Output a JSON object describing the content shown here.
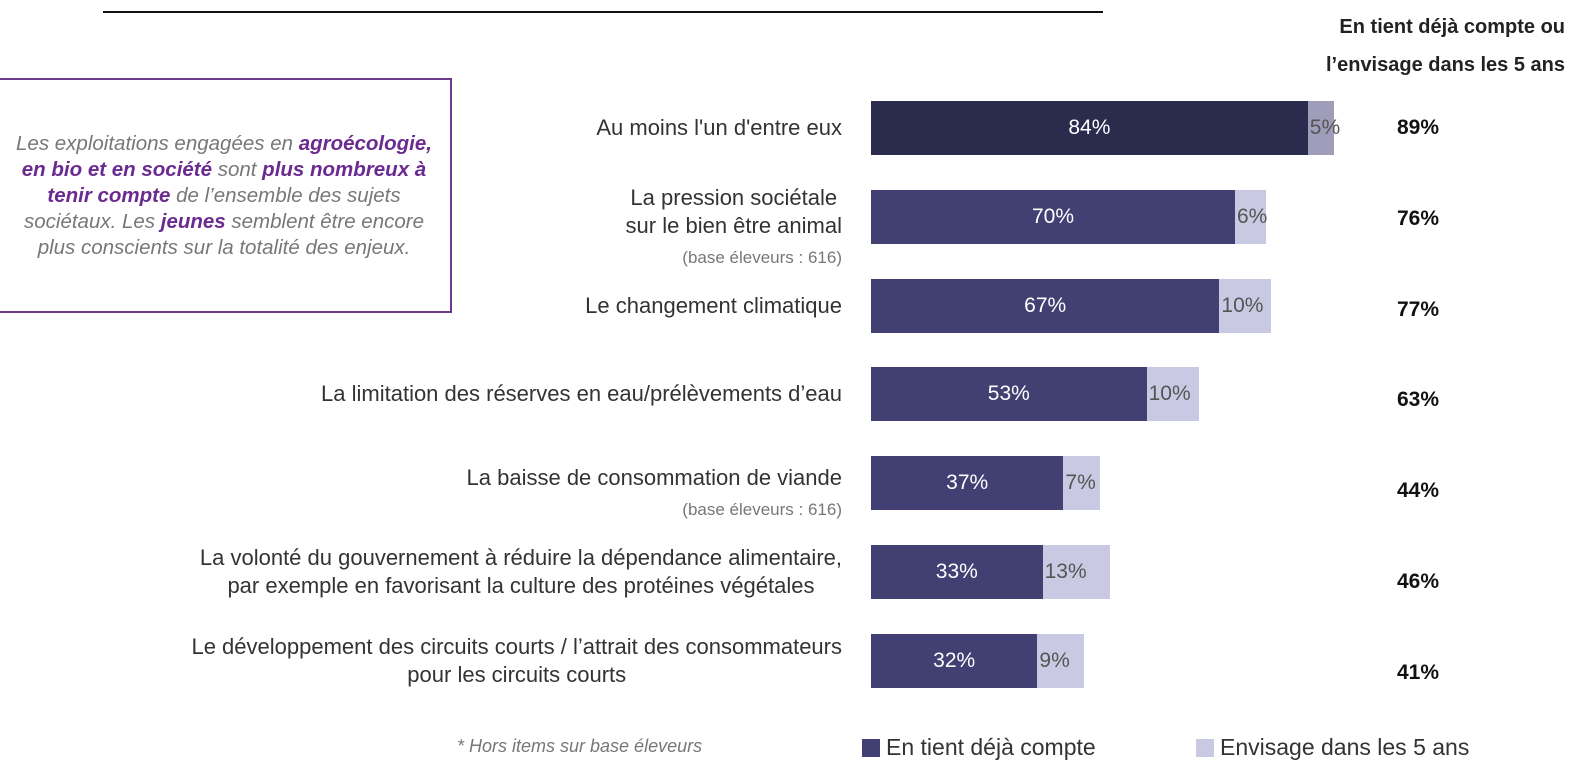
{
  "chart_data": {
    "type": "stacked_barh",
    "header": [
      "En tient déjà compte ou",
      "l’envisage dans les 5 ans"
    ],
    "categories": [
      [
        "Au moins l'un d'entre eux"
      ],
      [
        "La pression sociétale",
        "sur le bien être animal"
      ],
      [
        "Le changement climatique"
      ],
      [
        "La limitation des réserves en eau/prélèvements d’eau"
      ],
      [
        "La baisse de consommation de viande"
      ],
      [
        "La volonté du gouvernement à réduire la dépendance alimentaire,",
        "par exemple en favorisant la culture des protéines végétales"
      ],
      [
        "Le développement des circuits courts / l’attrait des consommateurs",
        "pour les circuits courts"
      ]
    ],
    "notes": [
      null,
      "(base éleveurs : 616)",
      null,
      null,
      "(base éleveurs : 616)",
      null,
      null
    ],
    "series": [
      {
        "name": "En tient déjà compte",
        "color": "#424073",
        "colors": [
          "#2b2b4d",
          "#424073",
          "#424073",
          "#424073",
          "#424073",
          "#424073",
          "#424073"
        ],
        "values": [
          84,
          70,
          67,
          53,
          37,
          33,
          32
        ],
        "value_labels": [
          "84%",
          "70%",
          "67%",
          "53%",
          "37%",
          "33%",
          "32%"
        ]
      },
      {
        "name": "Envisage dans les 5 ans",
        "color": "#cac9e3",
        "colors": [
          "#9f9dba",
          "#cac9e3",
          "#cac9e3",
          "#cac9e3",
          "#cac9e3",
          "#cac9e3",
          "#cac9e3"
        ],
        "values": [
          5,
          6,
          10,
          10,
          7,
          13,
          9
        ],
        "value_labels": [
          "5%",
          "6%",
          "10%",
          "10%",
          "7%",
          "13%",
          "9%"
        ]
      }
    ],
    "totals": [
      89,
      76,
      77,
      63,
      44,
      46,
      41
    ],
    "total_labels": [
      "89%",
      "76%",
      "77%",
      "63%",
      "44%",
      "46%",
      "41%"
    ],
    "xlim": [
      0,
      100
    ],
    "footnote": "* Hors items sur base éleveurs",
    "callout": [
      {
        "text": "Les exploitations engagées en ",
        "bold": false
      },
      {
        "text": "agroécologie, en bio et en société",
        "bold": true
      },
      {
        "text": " sont ",
        "bold": false
      },
      {
        "text": "plus nombreux à tenir compte",
        "bold": true
      },
      {
        "text": " de l’ensemble des sujets sociétaux. Les ",
        "bold": false
      },
      {
        "text": "jeunes",
        "bold": true
      },
      {
        "text": " semblent être encore plus conscients sur la totalité des enjeux.",
        "bold": false
      }
    ]
  }
}
